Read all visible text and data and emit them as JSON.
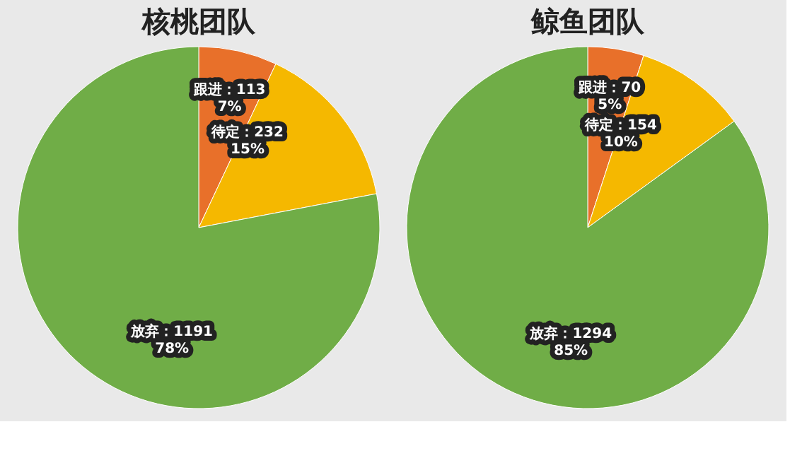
{
  "chart_data": [
    {
      "type": "pie",
      "title": "核桃团队",
      "categories": [
        "跟进：113",
        "待定：232",
        "放弃：1191"
      ],
      "values": [
        7,
        15,
        78
      ],
      "colors": [
        "#e8702a",
        "#f5b800",
        "#70ad47"
      ],
      "value_labels": [
        "7%",
        "15%",
        "78%"
      ]
    },
    {
      "type": "pie",
      "title": "鲸鱼团队",
      "categories": [
        "跟进：70",
        "待定：154",
        "放弃：1294"
      ],
      "values": [
        5,
        10,
        85
      ],
      "colors": [
        "#e8702a",
        "#f5b800",
        "#70ad47"
      ],
      "value_labels": [
        "5%",
        "10%",
        "85%"
      ]
    }
  ]
}
